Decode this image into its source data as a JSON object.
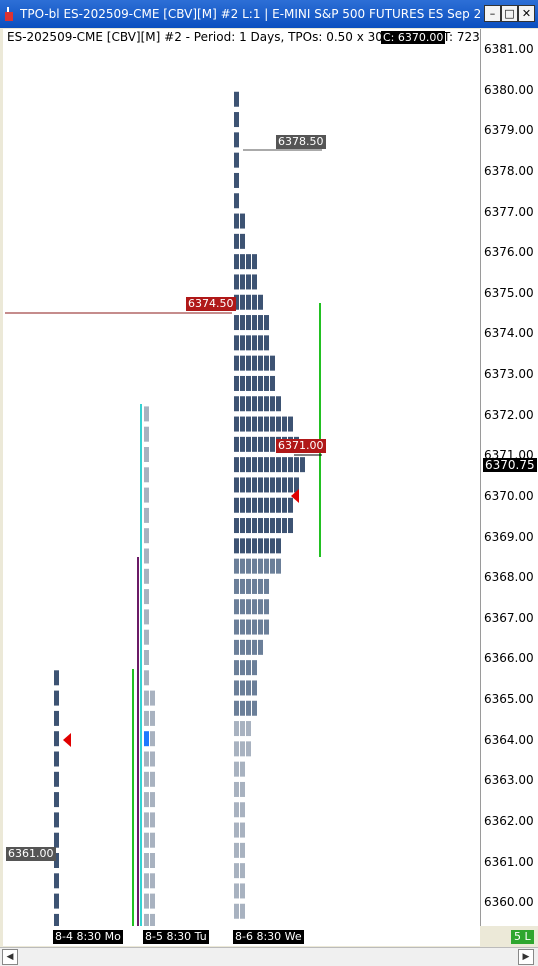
{
  "window": {
    "title": "TPO-bl ES-202509-CME [CBV][M] #2 L:1 | E-MINI S&P 500 FUTURES ES Sep 2025",
    "minimize_glyph": "–",
    "maximize_glyph": "□",
    "close_glyph": "✕"
  },
  "header": {
    "text": "ES-202509-CME [CBV][M] #2 - Period: 1 Days, TPOs: 0.50 x 30 min",
    "close_label": "C: 6370.00",
    "tpos_label": "T: 723"
  },
  "price_axis": {
    "labels": [
      "6381.00",
      "6380.00",
      "6379.00",
      "6378.00",
      "6377.00",
      "6376.00",
      "6375.00",
      "6374.00",
      "6373.00",
      "6372.00",
      "6371.00",
      "6370.00",
      "6369.00",
      "6368.00",
      "6367.00",
      "6366.00",
      "6365.00",
      "6364.00",
      "6363.00",
      "6362.00",
      "6361.00",
      "6360.00"
    ],
    "current_price": "6370.75"
  },
  "labels": {
    "value_high": "6378.50",
    "poc_prior": "6374.50",
    "poc_current": "6371.00",
    "low_mark": "6361.00"
  },
  "sessions": [
    {
      "label": "8-4  8:30 Mo"
    },
    {
      "label": "8-5  8:30 Tu"
    },
    {
      "label": "8-6  8:30 We"
    }
  ],
  "status": {
    "lines_label": "5 L"
  },
  "colors": {
    "tpo_dark": "#3d5373",
    "tpo_mid": "#6b7f99",
    "tpo_light": "#a8b2c0",
    "poc_red": "#d84646",
    "poc_label_bg": "#b01818",
    "ib_green": "#22c022",
    "ib_cyan": "#35d2d2",
    "ib_purple": "#6a1a66",
    "marker_red": "#e00000",
    "highlight_blue": "#1e78ff"
  },
  "chart_data": {
    "type": "tpo_profile",
    "tick_size": 0.5,
    "profiles": [
      {
        "session": "8-4",
        "low": 6359.5,
        "high": 6365.75,
        "marker": 6364.0
      },
      {
        "session": "8-5",
        "low": 6359.5,
        "high": 6372.25,
        "highlight_price": 6364.0
      },
      {
        "session": "8-6",
        "low": 6359.5,
        "high": 6379.75,
        "poc": 6371.0,
        "marker": 6370.0,
        "counts": [
          {
            "price": 6379.75,
            "n": 1
          },
          {
            "price": 6378.0,
            "n": 1
          },
          {
            "price": 6377.0,
            "n": 2
          },
          {
            "price": 6376.0,
            "n": 4
          },
          {
            "price": 6375.0,
            "n": 5
          },
          {
            "price": 6374.5,
            "n": 6
          },
          {
            "price": 6373.5,
            "n": 7
          },
          {
            "price": 6372.5,
            "n": 8
          },
          {
            "price": 6372.0,
            "n": 10
          },
          {
            "price": 6371.5,
            "n": 11
          },
          {
            "price": 6371.0,
            "n": 12
          },
          {
            "price": 6370.5,
            "n": 11
          },
          {
            "price": 6370.0,
            "n": 10
          },
          {
            "price": 6369.0,
            "n": 8
          },
          {
            "price": 6368.0,
            "n": 6
          },
          {
            "price": 6366.5,
            "n": 5
          },
          {
            "price": 6366.0,
            "n": 4
          },
          {
            "price": 6364.5,
            "n": 3
          },
          {
            "price": 6363.5,
            "n": 2
          },
          {
            "price": 6359.5,
            "n": 1
          }
        ]
      }
    ]
  }
}
